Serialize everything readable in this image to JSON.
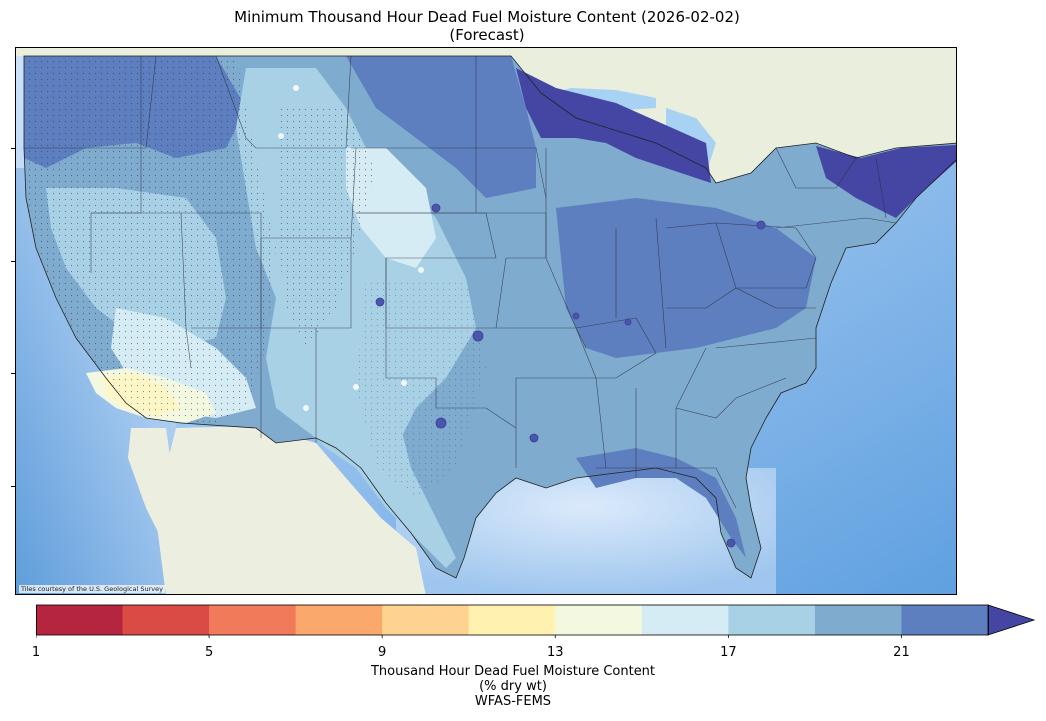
{
  "title_line1": "Minimum Thousand Hour Dead Fuel Moisture Content (2026-02-02)",
  "title_line2": "(Forecast)",
  "map": {
    "credit": "Tiles courtesy of the U.S. Geological Survey",
    "basemap_water_color": "#cfe3f5",
    "basemap_land_color": "#eef0e6"
  },
  "colorbar": {
    "title_line1": "Thousand Hour Dead Fuel Moisture Content",
    "title_line2": "(% dry wt)",
    "title_line3": "WFAS-FEMS",
    "min": 1,
    "max": 23,
    "extend": "max",
    "tick_labels": [
      "1",
      "5",
      "9",
      "13",
      "17",
      "21"
    ],
    "tick_values": [
      1,
      5,
      9,
      13,
      17,
      21
    ],
    "colors": [
      "#b5253f",
      "#da4b45",
      "#f07a5a",
      "#fba86c",
      "#fed38f",
      "#fff2b0",
      "#f2f9e0",
      "#d5ecf4",
      "#a9d1e6",
      "#7fabcf",
      "#5d7fbf",
      "#4545a3"
    ]
  },
  "legend_placement": "bottom"
}
